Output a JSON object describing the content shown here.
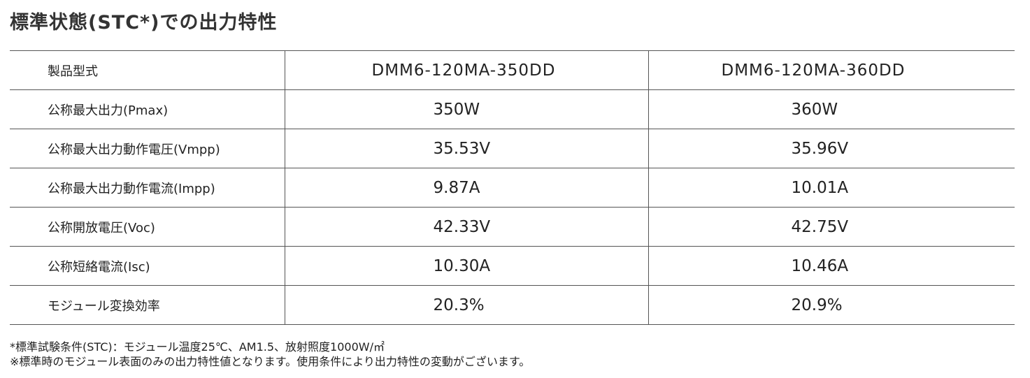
{
  "title": "標準状態(STC*)での出力特性",
  "table": {
    "header": {
      "label": "製品型式",
      "models": [
        "DMM6-120MA-350DD",
        "DMM6-120MA-360DD"
      ]
    },
    "rows": [
      {
        "label": "公称最大出力(Pmax)",
        "values": [
          "350W",
          "360W"
        ]
      },
      {
        "label": "公称最大出力動作電圧(Vmpp)",
        "values": [
          "35.53V",
          "35.96V"
        ]
      },
      {
        "label": "公称最大出力動作電流(Impp)",
        "values": [
          "9.87A",
          "10.01A"
        ]
      },
      {
        "label": "公称開放電圧(Voc)",
        "values": [
          "42.33V",
          "42.75V"
        ]
      },
      {
        "label": "公称短絡電流(Isc)",
        "values": [
          "10.30A",
          "10.46A"
        ]
      },
      {
        "label": "モジュール変換効率",
        "values": [
          "20.3%",
          "20.9%"
        ]
      }
    ]
  },
  "notes": [
    "*標準試験条件(STC)：モジュール温度25℃、AM1.5、放射照度1000W/㎡",
    "※標準時のモジュール表面のみの出力特性値となります。使用条件により出力特性の変動がございます。"
  ]
}
